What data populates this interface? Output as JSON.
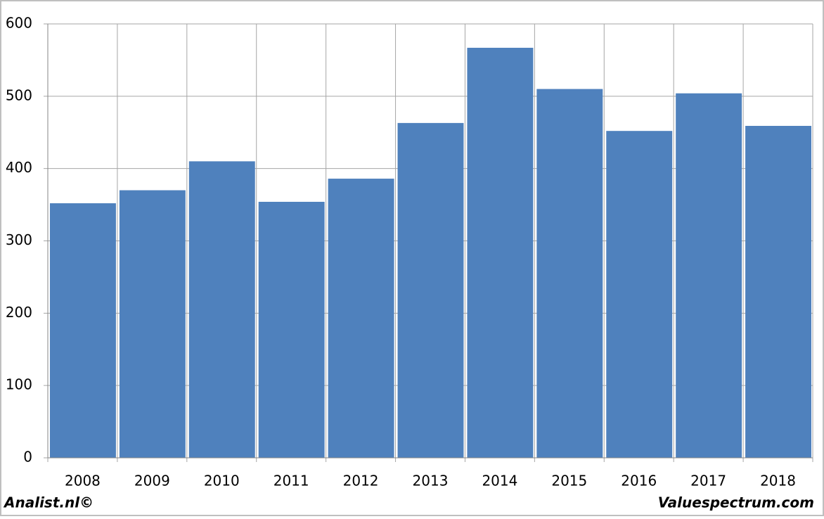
{
  "chart_data": {
    "type": "bar",
    "categories": [
      "2008",
      "2009",
      "2010",
      "2011",
      "2012",
      "2013",
      "2014",
      "2015",
      "2016",
      "2017",
      "2018"
    ],
    "values": [
      352,
      370,
      410,
      354,
      386,
      463,
      567,
      510,
      452,
      504,
      459
    ],
    "color": "#4f81bd",
    "ylim": [
      0,
      600
    ],
    "yticks": [
      0,
      100,
      200,
      300,
      400,
      500,
      600
    ],
    "grid": true,
    "source_left": "Analist.nl©",
    "source_right": "Valuespectrum.com"
  }
}
